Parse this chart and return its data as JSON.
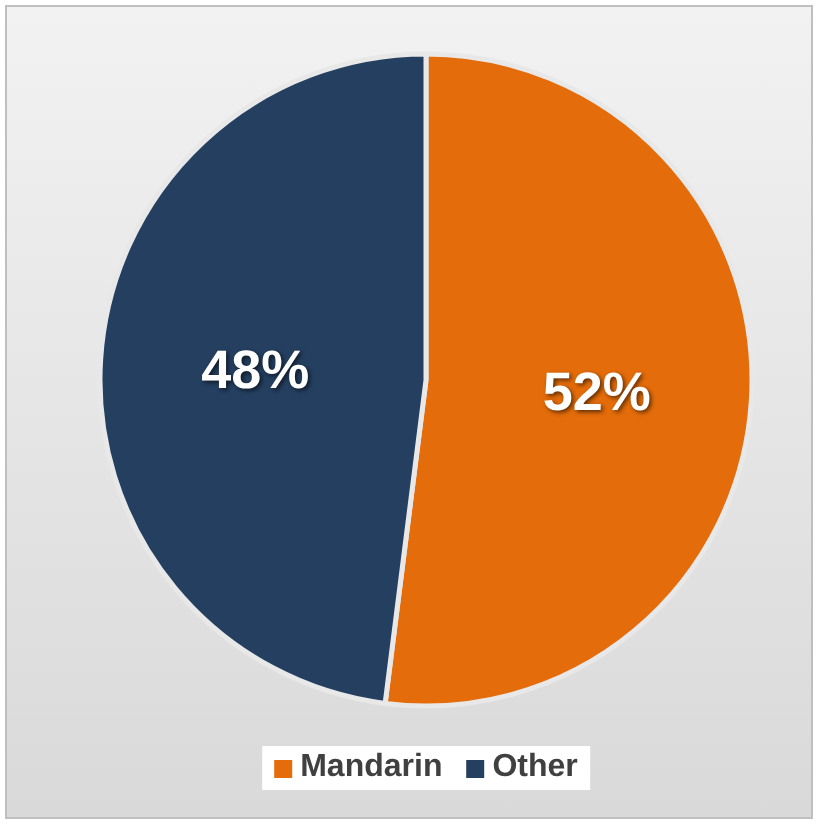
{
  "chart_data": {
    "type": "pie",
    "categories": [
      "Mandarin",
      "Other"
    ],
    "values": [
      52,
      48
    ],
    "colors": [
      "#e46c0a",
      "#243f60"
    ],
    "value_labels": [
      "52%",
      "48%"
    ],
    "legend": "bottom"
  }
}
